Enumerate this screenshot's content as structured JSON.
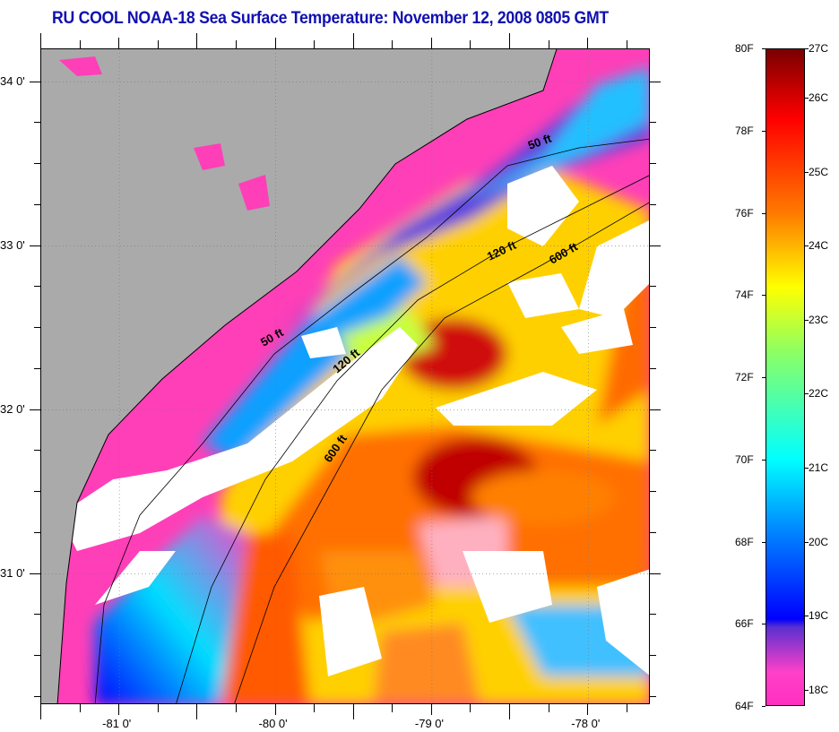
{
  "title": "RU COOL  NOAA-18  Sea Surface Temperature:  November 12, 2008 0805 GMT",
  "map": {
    "lat_labels": [
      {
        "value": 34,
        "label": "34 0'"
      },
      {
        "value": 33,
        "label": "33 0'"
      },
      {
        "value": 32,
        "label": "32 0'"
      },
      {
        "value": 31,
        "label": "31 0'"
      }
    ],
    "lon_labels": [
      {
        "value": -81,
        "label": "-81 0'"
      },
      {
        "value": -80,
        "label": "-80 0'"
      },
      {
        "value": -79,
        "label": "-79 0'"
      },
      {
        "value": -78,
        "label": "-78 0'"
      }
    ],
    "lat_range": [
      30.2,
      34.2
    ],
    "lon_range": [
      -81.5,
      -77.6
    ],
    "isobath_labels": [
      "50 ft",
      "120 ft",
      "600 ft",
      "50 ft",
      "120 ft",
      "600 ft"
    ],
    "land_color": "#aaaaaa",
    "cloud_color": "#ffffff"
  },
  "colorbar": {
    "f_range": [
      64,
      80
    ],
    "f_labels": [
      "80F",
      "78F",
      "76F",
      "74F",
      "72F",
      "70F",
      "68F",
      "66F",
      "64F"
    ],
    "f_values": [
      80,
      78,
      76,
      74,
      72,
      70,
      68,
      66,
      64
    ],
    "c_labels": [
      "27C",
      "26C",
      "25C",
      "24C",
      "23C",
      "22C",
      "21C",
      "20C",
      "19C",
      "18C"
    ],
    "c_values": [
      27,
      26,
      25,
      24,
      23,
      22,
      21,
      20,
      19,
      18
    ],
    "stops": [
      {
        "f": 80,
        "color": "#7a0000"
      },
      {
        "f": 78.3,
        "color": "#ff0000"
      },
      {
        "f": 76,
        "color": "#ff7a00"
      },
      {
        "f": 74.2,
        "color": "#ffff00"
      },
      {
        "f": 72.6,
        "color": "#8cff64"
      },
      {
        "f": 70,
        "color": "#00ffff"
      },
      {
        "f": 68.4,
        "color": "#0090ff"
      },
      {
        "f": 66.1,
        "color": "#0000ff"
      },
      {
        "f": 65.9,
        "color": "#5a30d0"
      },
      {
        "f": 64.8,
        "color": "#ff40c8"
      },
      {
        "f": 64,
        "color": "#ff30c0"
      }
    ]
  }
}
